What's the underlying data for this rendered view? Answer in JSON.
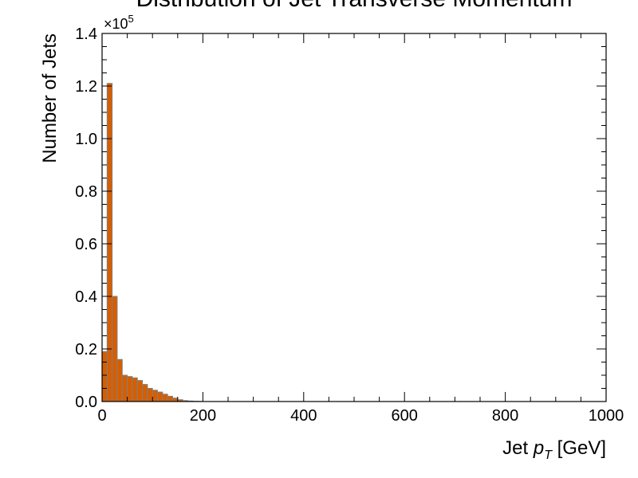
{
  "chart_data": {
    "type": "bar",
    "title": "Distribution of Jet Transverse Momentum",
    "xlabel_prefix": "Jet ",
    "xlabel_var": "p",
    "xlabel_sub": "T",
    "xlabel_suffix": " [GeV]",
    "ylabel": "Number of Jets",
    "y_multiplier_base": "×10",
    "y_multiplier_exp": "5",
    "xlim": [
      0,
      1000
    ],
    "ylim": [
      0,
      140000
    ],
    "x_ticks": [
      0,
      200,
      400,
      600,
      800,
      1000
    ],
    "x_tick_labels": [
      "0",
      "200",
      "400",
      "600",
      "800",
      "1000"
    ],
    "y_ticks": [
      0,
      20000,
      40000,
      60000,
      80000,
      100000,
      120000,
      140000
    ],
    "y_tick_labels": [
      "0.0",
      "0.2",
      "0.4",
      "0.6",
      "0.8",
      "1.0",
      "1.2",
      "1.4"
    ],
    "bin_width": 10,
    "bin_edges_start": 0,
    "values": [
      19000,
      121000,
      40000,
      16000,
      10000,
      9500,
      9000,
      8000,
      6500,
      5000,
      4300,
      3600,
      2800,
      2000,
      1300,
      700,
      350,
      200,
      100,
      50
    ],
    "fill_color": "#d55e00",
    "edge_color": "#808080",
    "grid": false
  }
}
